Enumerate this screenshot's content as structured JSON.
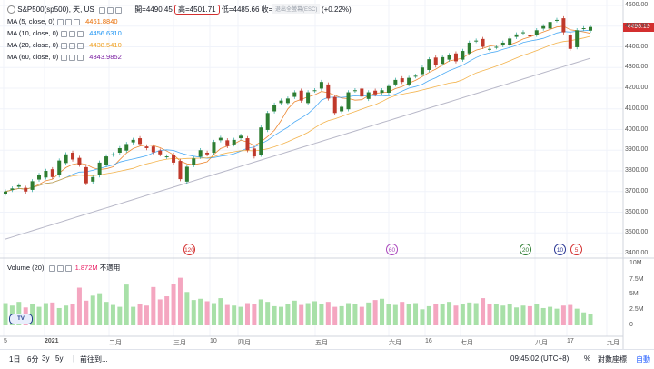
{
  "header": {
    "title": "S&P500(sp500), 天, US",
    "open": "開=4490.45",
    "high": "高=4501.71",
    "low": "低=4485.66",
    "close": "收=4496.19",
    "change": "+9.96 (+0.22%)",
    "hint": "退出全螢幕(ESC)"
  },
  "indicators": [
    {
      "label": "MA (5, close, 0)",
      "value": "4461.8840",
      "color": "#e86b00"
    },
    {
      "label": "MA (10, close, 0)",
      "value": "4456.6310",
      "color": "#2196f3"
    },
    {
      "label": "MA (20, close, 0)",
      "value": "4438.5410",
      "color": "#f0a020"
    },
    {
      "label": "MA (60, close, 0)",
      "value": "4343.9852",
      "color": "#7b1fa2"
    }
  ],
  "volume": {
    "label": "Volume (20)",
    "value": "1.872M",
    "note": "不適用"
  },
  "price_badge": "4496.19",
  "price_axis": [
    "4600.00",
    "4500.00",
    "4400.00",
    "4300.00",
    "4200.00",
    "4100.00",
    "4000.00",
    "3900.00",
    "3800.00",
    "3700.00",
    "3600.00",
    "3500.00",
    "3400.00"
  ],
  "volume_axis": [
    "10M",
    "7.5M",
    "5M",
    "2.5M",
    "0"
  ],
  "x_axis": [
    {
      "label": "5",
      "x": 4
    },
    {
      "label": "2021",
      "x": 49
    },
    {
      "label": "二月",
      "x": 120
    },
    {
      "label": "三月",
      "x": 191
    },
    {
      "label": "10",
      "x": 231
    },
    {
      "label": "四月",
      "x": 262
    },
    {
      "label": "五月",
      "x": 347
    },
    {
      "label": "六月",
      "x": 428
    },
    {
      "label": "16",
      "x": 468
    },
    {
      "label": "七月",
      "x": 507
    },
    {
      "label": "八月",
      "x": 589
    },
    {
      "label": "17",
      "x": 624
    },
    {
      "label": "九月",
      "x": 668
    }
  ],
  "events": [
    {
      "label": "120",
      "color": "#d32f2f",
      "x": 209
    },
    {
      "label": "60",
      "color": "#ab47bc",
      "x": 432
    },
    {
      "label": "20",
      "color": "#2e7d32",
      "x": 579
    },
    {
      "label": "10",
      "color": "#283593",
      "x": 617
    },
    {
      "label": "5",
      "color": "#d32f2f",
      "x": 635
    }
  ],
  "toolbar": {
    "ranges": [
      "1日",
      "6分",
      "3y",
      "5y"
    ],
    "goto": "前往到...",
    "time": "09:45:02 (UTC+8)",
    "percent": "%",
    "log": "對數座標",
    "auto": "自動"
  },
  "chart_data": {
    "type": "candlestick",
    "symbol": "S&P500",
    "ylim": [
      3400,
      4600
    ],
    "close_series_sampled": [
      3700,
      3715,
      3730,
      3700,
      3750,
      3780,
      3800,
      3770,
      3850,
      3880,
      3855,
      3830,
      3740,
      3770,
      3840,
      3870,
      3880,
      3910,
      3930,
      3950,
      3930,
      3910,
      3890,
      3880,
      3870,
      3840,
      3760,
      3820,
      3860,
      3900,
      3880,
      3940,
      3960,
      3920,
      3950,
      3970,
      3900,
      3870,
      4010,
      4080,
      4120,
      4140,
      4150,
      4180,
      4140,
      4180,
      4190,
      4230,
      4150,
      4080,
      4110,
      4180,
      4190,
      4160,
      4180,
      4170,
      4190,
      4210,
      4240,
      4230,
      4250,
      4260,
      4300,
      4340,
      4310,
      4350,
      4360,
      4330,
      4380,
      4420,
      4430,
      4400,
      4390,
      4400,
      4420,
      4440,
      4460,
      4470,
      4450,
      4480,
      4500,
      4520,
      4530,
      4470,
      4390,
      4480,
      4490,
      4496
    ],
    "volume_series_sampled": [
      3.6,
      3.2,
      3.8,
      2.9,
      3.4,
      3.0,
      3.6,
      3.7,
      2.8,
      3.2,
      3.5,
      6.1,
      4.0,
      4.8,
      5.2,
      3.8,
      3.3,
      3.0,
      6.6,
      3.0,
      3.4,
      3.2,
      6.2,
      4.2,
      4.7,
      6.7,
      7.7,
      5.4,
      4.1,
      4.3,
      3.9,
      3.6,
      4.4,
      3.3,
      3.2,
      3.0,
      3.6,
      3.4,
      4.2,
      3.8,
      3.1,
      3.0,
      3.4,
      4.0,
      3.3,
      3.6,
      3.9,
      3.5,
      3.8,
      3.0,
      3.1,
      3.6,
      3.5,
      3.0,
      3.7,
      4.1,
      4.3,
      3.5,
      3.3,
      3.8,
      3.5,
      3.6,
      2.6,
      3.1,
      3.4,
      3.5,
      3.8,
      3.2,
      3.4,
      3.7,
      3.6,
      4.4,
      3.4,
      3.5,
      3.2,
      3.4,
      2.9,
      3.2,
      3.1,
      3.4,
      2.8,
      3.0,
      2.7,
      3.2,
      3.3,
      2.7,
      2.1,
      1.9
    ]
  }
}
